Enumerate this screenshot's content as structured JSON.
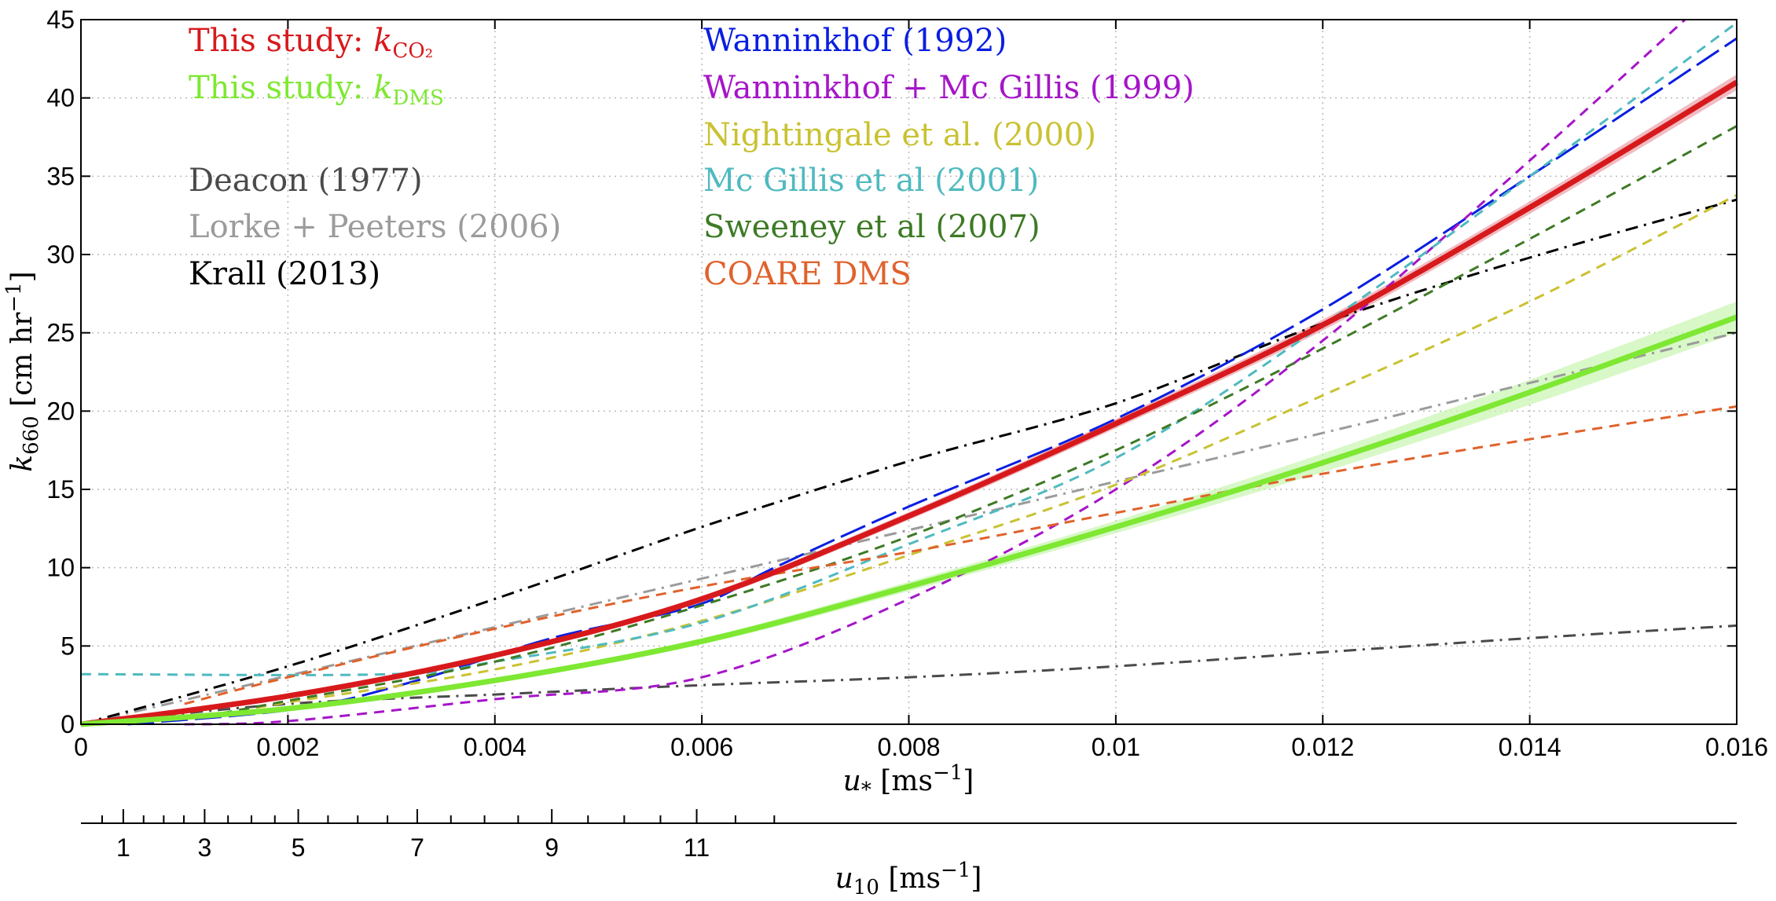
{
  "chart_data": {
    "type": "line",
    "title": "",
    "xlabel": {
      "sym": "u",
      "sub": "*",
      "unit": " [ms",
      "sup": "−1",
      "end": "]"
    },
    "ylabel": {
      "sym": "k",
      "sub": "660",
      "unit": " [cm hr",
      "sup": "−1",
      "end": "]"
    },
    "x2label": {
      "sym": "u",
      "sub": "10",
      "unit": " [ms",
      "sup": "−1",
      "end": "]"
    },
    "xlim": [
      0,
      0.016
    ],
    "ylim": [
      0,
      45
    ],
    "xticks": [
      0,
      0.002,
      0.004,
      0.006,
      0.008,
      0.01,
      0.012,
      0.014,
      0.016
    ],
    "xticklabels": [
      "0",
      "0.002",
      "0.004",
      "0.006",
      "0.008",
      "0.01",
      "0.012",
      "0.014",
      "0.016"
    ],
    "yticks": [
      0,
      5,
      10,
      15,
      20,
      25,
      30,
      35,
      40,
      45
    ],
    "yticklabels": [
      "0",
      "5",
      "10",
      "15",
      "20",
      "25",
      "30",
      "35",
      "40",
      "45"
    ],
    "x2_major_ticks": [
      1,
      3,
      5,
      7,
      9,
      11
    ],
    "x2_major_labels": [
      "1",
      "3",
      "5",
      "7",
      "9",
      "11"
    ],
    "x2_minor_ticks": [
      0.5,
      1.5,
      2,
      2.5,
      3.5,
      4,
      4.5,
      5.5,
      6,
      6.5,
      7.5,
      8,
      8.5,
      9.5,
      10,
      10.5,
      11.5,
      12
    ],
    "x2_breakpoints": [
      [
        0,
        0
      ],
      [
        0.00045,
        1.1
      ],
      [
        0.00115,
        2.9
      ],
      [
        0.0021,
        5.0
      ],
      [
        0.00325,
        7.0
      ],
      [
        0.00455,
        9.0
      ],
      [
        0.00595,
        11.0
      ],
      [
        0.0067,
        12.0
      ]
    ],
    "grid": true,
    "legend_placement": "top-left",
    "series": [
      {
        "name": "This study: ",
        "name_sym": "k",
        "name_sub": "CO₂",
        "color": "#d7191c",
        "style": "solid",
        "width": 7,
        "band_color": "#e8a0a8",
        "band_half": [
          0,
          0.1,
          0.15,
          0.2,
          0.25,
          0.3,
          0.35,
          0.4,
          0.5
        ],
        "x": [
          0,
          0.002,
          0.004,
          0.006,
          0.008,
          0.01,
          0.012,
          0.014,
          0.016
        ],
        "y": [
          0,
          1.8,
          4.4,
          8.0,
          13.3,
          19.2,
          25.5,
          33.0,
          41.0
        ]
      },
      {
        "name": "This study: ",
        "name_sym": "k",
        "name_sub": "DMS",
        "color": "#7ee832",
        "style": "solid",
        "width": 7,
        "band_color": "#c8f5b0",
        "band_half": [
          0,
          0.1,
          0.15,
          0.2,
          0.3,
          0.4,
          0.6,
          0.8,
          1.0
        ],
        "x": [
          0,
          0.002,
          0.004,
          0.006,
          0.008,
          0.01,
          0.012,
          0.014,
          0.016
        ],
        "y": [
          0,
          1.0,
          2.8,
          5.3,
          8.8,
          12.6,
          16.7,
          21.2,
          26.0
        ]
      },
      {
        "name": "Deacon (1977)",
        "color": "#4a4a4a",
        "style": "dashdot",
        "width": 3,
        "x": [
          0,
          0.002,
          0.004,
          0.006,
          0.008,
          0.01,
          0.012,
          0.014,
          0.016
        ],
        "y": [
          0,
          1.3,
          1.9,
          2.5,
          3.0,
          3.7,
          4.6,
          5.5,
          6.3
        ]
      },
      {
        "name": "Lorke + Peeters (2006)",
        "color": "#9b9b9b",
        "style": "dashdot",
        "width": 3,
        "x": [
          0,
          0.002,
          0.004,
          0.006,
          0.008,
          0.01,
          0.012,
          0.014,
          0.016
        ],
        "y": [
          0,
          3.1,
          6.2,
          9.3,
          12.4,
          15.5,
          18.6,
          21.8,
          25.0
        ]
      },
      {
        "name": "Krall (2013)",
        "color": "#000000",
        "style": "dashdot",
        "width": 3,
        "x": [
          0,
          0.002,
          0.004,
          0.006,
          0.008,
          0.01,
          0.012,
          0.014,
          0.016
        ],
        "y": [
          0,
          3.7,
          8.0,
          12.6,
          16.8,
          20.5,
          25.6,
          29.8,
          33.5
        ]
      },
      {
        "name": "Wanninkhof (1992)",
        "color": "#0a1ee0",
        "style": "longdash",
        "width": 3,
        "x": [
          0.00045,
          0.0021,
          0.00325,
          0.00455,
          0.00595,
          0.0067,
          0.008,
          0.01,
          0.012,
          0.014,
          0.016
        ],
        "y": [
          0.0,
          1.0,
          2.8,
          5.5,
          7.6,
          10.0,
          13.9,
          19.5,
          26.5,
          35.0,
          43.8
        ]
      },
      {
        "name": "Wanninkhof + Mc Gillis (1999)",
        "color": "#a515c8",
        "style": "dash",
        "width": 3,
        "x": [
          0.001,
          0.002,
          0.004,
          0.006,
          0.008,
          0.01,
          0.012,
          0.014,
          0.0155
        ],
        "y": [
          0,
          0.2,
          1.6,
          3.0,
          8.0,
          15.0,
          24.5,
          36.0,
          45.0
        ]
      },
      {
        "name": "Nightingale et al. (2000)",
        "color": "#c9c232",
        "style": "dash",
        "width": 3,
        "x": [
          0.0012,
          0.002,
          0.004,
          0.006,
          0.008,
          0.01,
          0.012,
          0.014,
          0.016
        ],
        "y": [
          0.5,
          1.4,
          3.5,
          6.6,
          10.8,
          15.3,
          21.0,
          27.0,
          33.8
        ]
      },
      {
        "name": "Mc Gillis et al (2001)",
        "color": "#4fbac0",
        "style": "dash",
        "width": 3,
        "x": [
          0,
          0.003,
          0.004,
          0.006,
          0.008,
          0.01,
          0.012,
          0.014,
          0.016
        ],
        "y": [
          3.2,
          3.2,
          4.0,
          6.5,
          11.5,
          17.0,
          25.5,
          35.0,
          44.8
        ]
      },
      {
        "name": "Sweeney et al (2007)",
        "color": "#3d7a25",
        "style": "dash",
        "width": 3,
        "x": [
          0.0012,
          0.002,
          0.004,
          0.006,
          0.008,
          0.01,
          0.012,
          0.014,
          0.016
        ],
        "y": [
          0.5,
          1.5,
          4.0,
          7.6,
          12.0,
          17.5,
          24.0,
          31.0,
          38.2
        ]
      },
      {
        "name": "COARE DMS",
        "color": "#e0622c",
        "style": "dash",
        "width": 3,
        "x": [
          0.001,
          0.002,
          0.004,
          0.006,
          0.008,
          0.01,
          0.012,
          0.014,
          0.016
        ],
        "y": [
          1.3,
          3.0,
          6.1,
          8.8,
          11.0,
          13.5,
          16.0,
          18.2,
          20.3
        ]
      }
    ]
  }
}
